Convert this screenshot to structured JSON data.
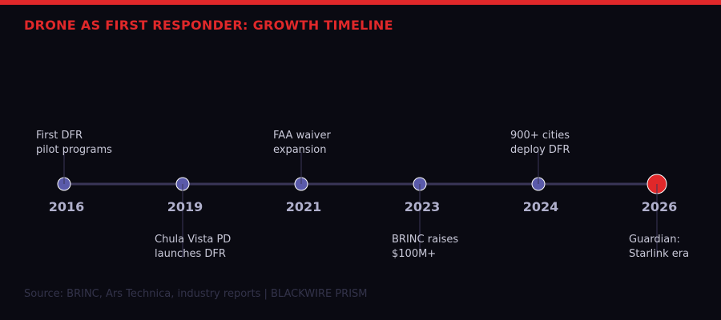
{
  "title": "DRONE AS FIRST RESPONDER: GROWTH TIMELINE",
  "source": "Source: BRINC, Ars Technica, industry reports | BLACKWIRE PRISM",
  "colors": {
    "accent": "#e0282a",
    "node": "#5a5aaa",
    "line": "#3a3658",
    "year": "#b0b0cc",
    "label": "#c8c8d8"
  },
  "events": [
    {
      "year": "2016",
      "label": [
        "First DFR",
        "pilot programs"
      ],
      "position": "above",
      "highlight": false
    },
    {
      "year": "2019",
      "label": [
        "Chula Vista PD",
        "launches DFR"
      ],
      "position": "below",
      "highlight": false
    },
    {
      "year": "2021",
      "label": [
        "FAA waiver",
        "expansion"
      ],
      "position": "above",
      "highlight": false
    },
    {
      "year": "2023",
      "label": [
        "BRINC raises",
        "$100M+"
      ],
      "position": "below",
      "highlight": false
    },
    {
      "year": "2024",
      "label": [
        "900+ cities",
        "deploy DFR"
      ],
      "position": "above",
      "highlight": false
    },
    {
      "year": "2026",
      "label": [
        "Guardian:",
        "Starlink era"
      ],
      "position": "below",
      "highlight": true
    }
  ]
}
